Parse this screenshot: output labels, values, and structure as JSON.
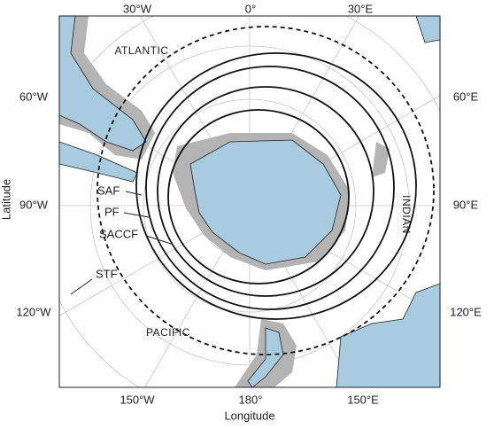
{
  "axes": {
    "x_label": "Longitude",
    "y_label": "Latitude"
  },
  "longitude_labels": {
    "top": [
      "30°W",
      "0°",
      "30°E"
    ],
    "left": [
      "60°W",
      "90°W",
      "120°W"
    ],
    "right": [
      "60°E",
      "90°E",
      "120°E"
    ],
    "bottom": [
      "150°W",
      "180°",
      "150°E"
    ]
  },
  "oceans": [
    "ATLANTIC",
    "INDIAN",
    "PACIFIC"
  ],
  "fronts": [
    "SAF",
    "PF",
    "SACCF",
    "STF"
  ]
}
